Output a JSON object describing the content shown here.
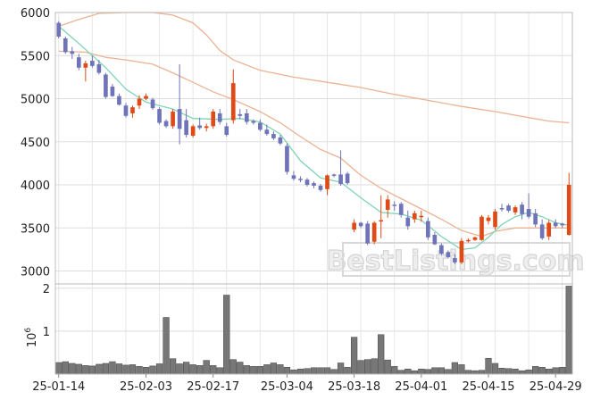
{
  "chart_data": {
    "type": "candlestick",
    "x_tick_labels": [
      "25-01-14",
      "25-02-03",
      "25-02-17",
      "25-03-04",
      "25-03-18",
      "25-04-01",
      "25-04-15",
      "25-04-29"
    ],
    "x_tick_index": [
      0,
      13,
      23,
      34,
      44,
      54,
      64,
      74
    ],
    "price_axis": {
      "ylim": [
        2850,
        6000
      ],
      "ticks": [
        3000,
        3500,
        4000,
        4500,
        5000,
        5500,
        6000
      ]
    },
    "volume_axis": {
      "ylim": [
        0,
        2100000
      ],
      "ticks": [
        1,
        2
      ],
      "exponent_label": "10",
      "exponent_power": "6"
    },
    "watermark": "BestListings.com",
    "colors": {
      "up": "#e04a16",
      "down": "#6f74b8",
      "ma_short": "#7fd4b4",
      "ma_mid": "#eab393",
      "ma_long": "#eab393",
      "volume": "#777777",
      "grid": "#dddddd"
    },
    "ohlc": [
      [
        5880,
        5900,
        5700,
        5720
      ],
      [
        5700,
        5720,
        5520,
        5540
      ],
      [
        5550,
        5600,
        5460,
        5520
      ],
      [
        5480,
        5520,
        5330,
        5360
      ],
      [
        5360,
        5440,
        5200,
        5410
      ],
      [
        5440,
        5500,
        5360,
        5380
      ],
      [
        5400,
        5450,
        5280,
        5300
      ],
      [
        5280,
        5300,
        5000,
        5020
      ],
      [
        5140,
        5170,
        5020,
        5030
      ],
      [
        5030,
        5060,
        4920,
        4930
      ],
      [
        4920,
        4950,
        4780,
        4800
      ],
      [
        4830,
        4920,
        4780,
        4900
      ],
      [
        4920,
        5040,
        4880,
        5000
      ],
      [
        5000,
        5060,
        4980,
        5030
      ],
      [
        4990,
        5010,
        4870,
        4890
      ],
      [
        4880,
        4900,
        4700,
        4720
      ],
      [
        4740,
        4760,
        4660,
        4680
      ],
      [
        4680,
        4880,
        4650,
        4850
      ],
      [
        4880,
        5400,
        4470,
        4650
      ],
      [
        4750,
        4880,
        4550,
        4580
      ],
      [
        4570,
        4700,
        4550,
        4680
      ],
      [
        4690,
        4780,
        4640,
        4660
      ],
      [
        4660,
        4710,
        4620,
        4680
      ],
      [
        4680,
        4880,
        4650,
        4850
      ],
      [
        4830,
        4880,
        4700,
        4730
      ],
      [
        4680,
        4720,
        4560,
        4580
      ],
      [
        4750,
        5340,
        4710,
        5180
      ],
      [
        4820,
        4880,
        4760,
        4800
      ],
      [
        4830,
        4880,
        4700,
        4730
      ],
      [
        4740,
        4760,
        4700,
        4720
      ],
      [
        4720,
        4760,
        4620,
        4640
      ],
      [
        4640,
        4700,
        4570,
        4590
      ],
      [
        4590,
        4620,
        4520,
        4540
      ],
      [
        4550,
        4580,
        4460,
        4480
      ],
      [
        4450,
        4480,
        4120,
        4150
      ],
      [
        4110,
        4160,
        4050,
        4070
      ],
      [
        4070,
        4100,
        4030,
        4060
      ],
      [
        4060,
        4080,
        3980,
        4000
      ],
      [
        4020,
        4040,
        3960,
        3990
      ],
      [
        3990,
        4010,
        3920,
        3940
      ],
      [
        3950,
        4120,
        3880,
        4110
      ],
      [
        4120,
        4130,
        4090,
        4110
      ],
      [
        4120,
        4400,
        3990,
        4010
      ],
      [
        4130,
        4150,
        4000,
        4020
      ],
      [
        3480,
        3600,
        3450,
        3560
      ],
      [
        3560,
        3570,
        3500,
        3520
      ],
      [
        3550,
        3580,
        3300,
        3320
      ],
      [
        3340,
        3580,
        3310,
        3560
      ],
      [
        3580,
        3880,
        3380,
        3590
      ],
      [
        3710,
        3880,
        3620,
        3830
      ],
      [
        3770,
        3810,
        3700,
        3760
      ],
      [
        3780,
        3800,
        3620,
        3650
      ],
      [
        3620,
        3700,
        3480,
        3520
      ],
      [
        3600,
        3700,
        3560,
        3670
      ],
      [
        3630,
        3700,
        3570,
        3640
      ],
      [
        3580,
        3620,
        3360,
        3390
      ],
      [
        3420,
        3450,
        3300,
        3310
      ],
      [
        3300,
        3320,
        3180,
        3200
      ],
      [
        3220,
        3240,
        3150,
        3160
      ],
      [
        3150,
        3200,
        3080,
        3100
      ],
      [
        3100,
        3380,
        3080,
        3350
      ],
      [
        3350,
        3380,
        3330,
        3360
      ],
      [
        3360,
        3400,
        3350,
        3390
      ],
      [
        3360,
        3650,
        3350,
        3630
      ],
      [
        3580,
        3650,
        3540,
        3620
      ],
      [
        3510,
        3720,
        3480,
        3690
      ],
      [
        3730,
        3780,
        3690,
        3720
      ],
      [
        3760,
        3780,
        3680,
        3700
      ],
      [
        3680,
        3760,
        3650,
        3740
      ],
      [
        3770,
        3800,
        3600,
        3660
      ],
      [
        3720,
        3900,
        3610,
        3630
      ],
      [
        3670,
        3720,
        3510,
        3540
      ],
      [
        3540,
        3600,
        3360,
        3380
      ],
      [
        3400,
        3590,
        3360,
        3560
      ],
      [
        3560,
        3600,
        3500,
        3520
      ],
      [
        3550,
        3560,
        3500,
        3530
      ],
      [
        3420,
        4140,
        3410,
        4000
      ]
    ],
    "volume": [
      270000,
      290000,
      250000,
      230000,
      200000,
      190000,
      230000,
      250000,
      290000,
      240000,
      210000,
      220000,
      180000,
      160000,
      190000,
      240000,
      1320000,
      360000,
      240000,
      280000,
      220000,
      200000,
      320000,
      200000,
      150000,
      1840000,
      340000,
      280000,
      200000,
      180000,
      180000,
      220000,
      260000,
      220000,
      160000,
      100000,
      120000,
      130000,
      150000,
      150000,
      150000,
      110000,
      260000,
      160000,
      860000,
      320000,
      340000,
      360000,
      920000,
      330000,
      180000,
      90000,
      120000,
      80000,
      120000,
      110000,
      150000,
      150000,
      110000,
      270000,
      220000,
      90000,
      80000,
      90000,
      370000,
      250000,
      140000,
      130000,
      120000,
      80000,
      100000,
      180000,
      160000,
      120000,
      150000,
      160000,
      2050000
    ],
    "ma_short": [
      [
        0,
        5840
      ],
      [
        3,
        5640
      ],
      [
        7,
        5360
      ],
      [
        10,
        5110
      ],
      [
        13,
        4960
      ],
      [
        17,
        4880
      ],
      [
        20,
        4770
      ],
      [
        24,
        4760
      ],
      [
        27,
        4770
      ],
      [
        30,
        4730
      ],
      [
        33,
        4590
      ],
      [
        36,
        4280
      ],
      [
        39,
        4080
      ],
      [
        42,
        4030
      ],
      [
        45,
        3850
      ],
      [
        48,
        3680
      ],
      [
        51,
        3660
      ],
      [
        54,
        3590
      ],
      [
        57,
        3400
      ],
      [
        60,
        3250
      ],
      [
        62,
        3270
      ],
      [
        64,
        3390
      ],
      [
        66,
        3540
      ],
      [
        68,
        3630
      ],
      [
        70,
        3680
      ],
      [
        72,
        3630
      ],
      [
        74,
        3560
      ],
      [
        76,
        3530
      ]
    ],
    "ma_mid": [
      [
        0,
        5550
      ],
      [
        4,
        5540
      ],
      [
        7,
        5480
      ],
      [
        10,
        5450
      ],
      [
        14,
        5400
      ],
      [
        17,
        5300
      ],
      [
        20,
        5190
      ],
      [
        23,
        5080
      ],
      [
        26,
        4990
      ],
      [
        30,
        4850
      ],
      [
        33,
        4720
      ],
      [
        36,
        4560
      ],
      [
        39,
        4410
      ],
      [
        42,
        4310
      ],
      [
        45,
        4110
      ],
      [
        48,
        3960
      ],
      [
        51,
        3840
      ],
      [
        54,
        3720
      ],
      [
        57,
        3600
      ],
      [
        60,
        3470
      ],
      [
        63,
        3400
      ],
      [
        65,
        3460
      ],
      [
        68,
        3500
      ],
      [
        71,
        3500
      ],
      [
        74,
        3500
      ],
      [
        76,
        3500
      ]
    ],
    "ma_long": [
      [
        0,
        5840
      ],
      [
        3,
        5920
      ],
      [
        6,
        5990
      ],
      [
        10,
        6000
      ],
      [
        14,
        6000
      ],
      [
        17,
        5970
      ],
      [
        20,
        5880
      ],
      [
        22,
        5740
      ],
      [
        24,
        5560
      ],
      [
        26,
        5450
      ],
      [
        30,
        5330
      ],
      [
        35,
        5250
      ],
      [
        40,
        5190
      ],
      [
        45,
        5130
      ],
      [
        50,
        5050
      ],
      [
        55,
        4980
      ],
      [
        60,
        4910
      ],
      [
        65,
        4850
      ],
      [
        70,
        4780
      ],
      [
        73,
        4740
      ],
      [
        76,
        4720
      ]
    ]
  }
}
